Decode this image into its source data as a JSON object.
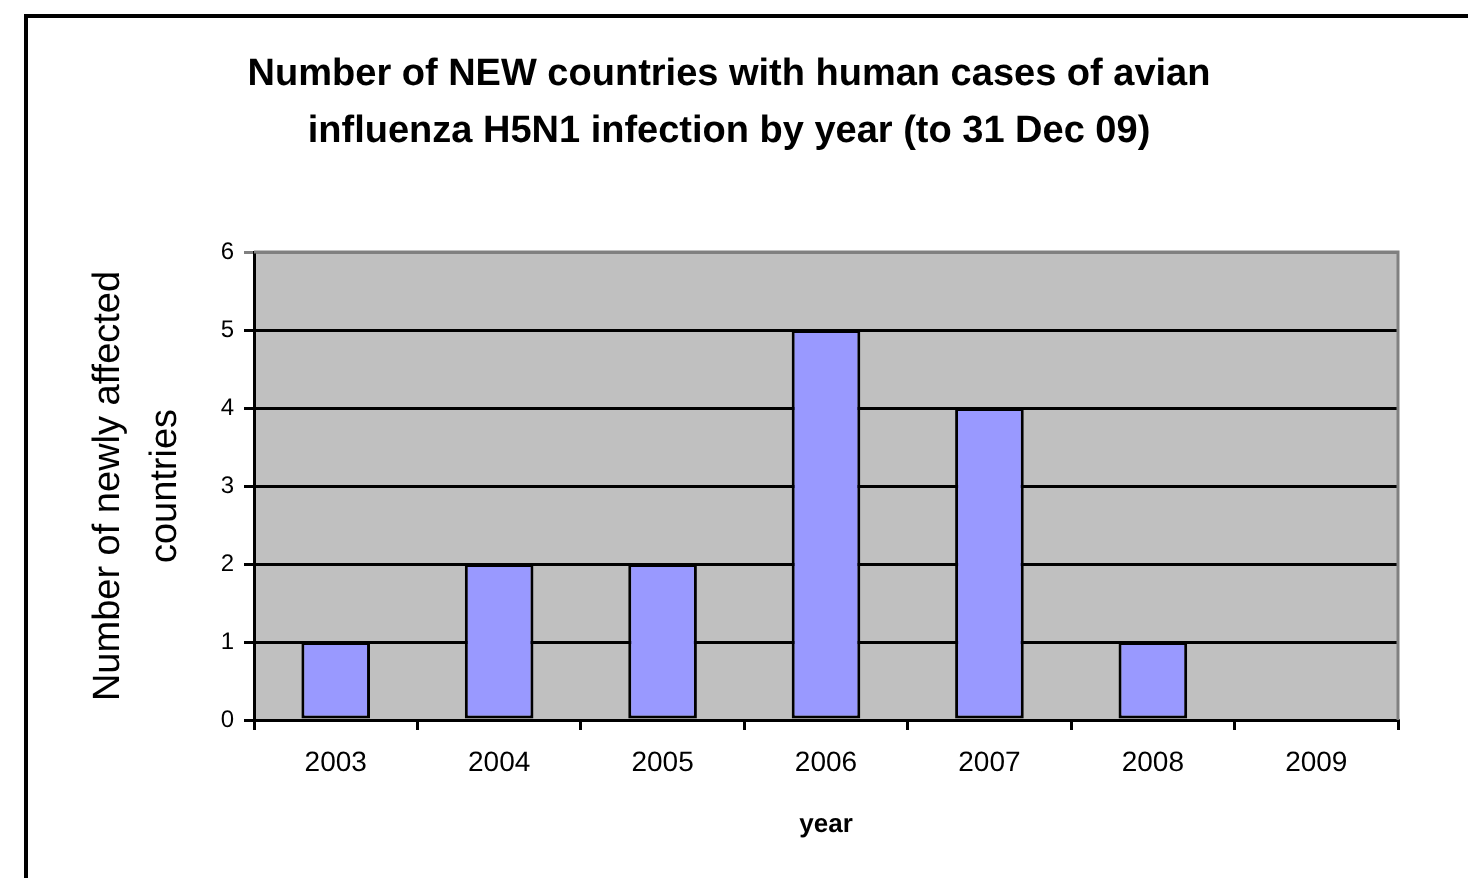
{
  "chart_data": {
    "type": "bar",
    "title": "Number of NEW countries with human cases of avian influenza H5N1 infection by year (to 31 Dec 09)",
    "xlabel": "year",
    "ylabel": "Number of newly affected countries",
    "categories": [
      "2003",
      "2004",
      "2005",
      "2006",
      "2007",
      "2008",
      "2009"
    ],
    "values": [
      1,
      2,
      2,
      5,
      4,
      1,
      0
    ],
    "color": "#9999ff",
    "ylim": [
      0,
      6
    ],
    "yticks": [
      0,
      1,
      2,
      3,
      4,
      5,
      6
    ],
    "grid": "y"
  }
}
